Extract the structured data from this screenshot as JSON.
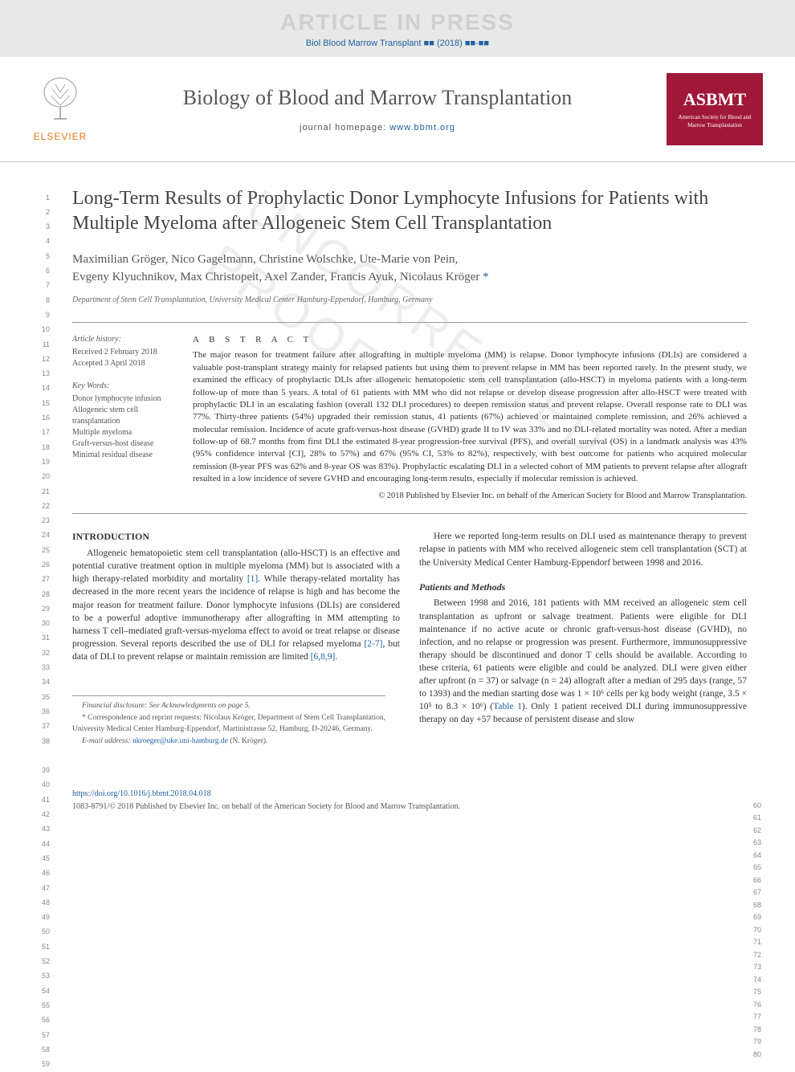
{
  "watermark": {
    "title": "ARTICLE IN PRESS",
    "citation": "Biol Blood Marrow Transplant ■■ (2018) ■■-■■",
    "proof": "UNCORRECTED PROOF"
  },
  "header": {
    "elsevier": "ELSEVIER",
    "journal_title": "Biology of Blood and Marrow Transplantation",
    "homepage_label": "journal homepage: ",
    "homepage_url": "www.bbmt.org",
    "asbmt": "ASBMT",
    "asbmt_sub": "American Society for Blood and Marrow Transplantation"
  },
  "article": {
    "title": "Long-Term Results of Prophylactic Donor Lymphocyte Infusions for Patients with Multiple Myeloma after Allogeneic Stem Cell Transplantation",
    "authors_line1": "Maximilian Gröger, Nico Gagelmann, Christine Wolschke, Ute-Marie von Pein,",
    "authors_line2": "Evgeny Klyuchnikov, Max Christopeit, Axel Zander, Francis Ayuk, Nicolaus Kröger ",
    "corresp_mark": "*",
    "affiliation": "Department of Stem Cell Transplantation, University Medical Center Hamburg-Eppendorf, Hamburg, Germany"
  },
  "history": {
    "label": "Article history:",
    "received": "Received 2 February 2018",
    "accepted": "Accepted 3 April 2018"
  },
  "keywords": {
    "label": "Key Words:",
    "items": [
      "Donor lymphocyte infusion",
      "Allogeneic stem cell transplantation",
      "Multiple myeloma",
      "Graft-versus-host disease",
      "Minimal residual disease"
    ]
  },
  "abstract": {
    "label": "A B S T R A C T",
    "text": "The major reason for treatment failure after allografting in multiple myeloma (MM) is relapse. Donor lymphocyte infusions (DLIs) are considered a valuable post-transplant strategy mainly for relapsed patients but using them to prevent relapse in MM has been reported rarely. In the present study, we examined the efficacy of prophylactic DLIs after allogeneic hematopoietic stem cell transplantation (allo-HSCT) in myeloma patients with a long-term follow-up of more than 5 years. A total of 61 patients with MM who did not relapse or develop disease progression after allo-HSCT were treated with prophylactic DLI in an escalating fashion (overall 132 DLI procedures) to deepen remission status and prevent relapse. Overall response rate to DLI was 77%. Thirty-three patients (54%) upgraded their remission status, 41 patients (67%) achieved or maintained complete remission, and 26% achieved a molecular remission. Incidence of acute graft-versus-host disease (GVHD) grade II to IV was 33% and no DLI-related mortality was noted. After a median follow-up of 68.7 months from first DLI the estimated 8-year progression-free survival (PFS), and overall survival (OS) in a landmark analysis was 43% (95% confidence interval [CI], 28% to 57%) and 67% (95% CI, 53% to 82%), respectively, with best outcome for patients who acquired molecular remission (8-year PFS was 62% and 8-year OS was 83%). Prophylactic escalating DLI in a selected cohort of MM patients to prevent relapse after allograft resulted in a low incidence of severe GVHD and encouraging long-term results, especially if molecular remission is achieved.",
    "copyright": "© 2018 Published by Elsevier Inc. on behalf of the American Society for Blood and Marrow Transplantation."
  },
  "body": {
    "intro_head": "INTRODUCTION",
    "intro_text": "Allogeneic hematopoietic stem cell transplantation (allo-HSCT) is an effective and potential curative treatment option in multiple myeloma (MM) but is associated with a high therapy-related morbidity and mortality [1]. While therapy-related mortality has decreased in the more recent years the incidence of relapse is high and has become the major reason for treatment failure. Donor lymphocyte infusions (DLIs) are considered to be a powerful adoptive immunotherapy after allografting in MM attempting to harness T cell–mediated graft-versus-myeloma effect to avoid or treat relapse or disease progression. Several reports described the use of DLI for relapsed myeloma [2-7], but data of DLI to prevent relapse or maintain remission are limited [6,8,9].",
    "right1": "Here we reported long-term results on DLI used as maintenance therapy to prevent relapse in patients with MM who received allogeneic stem cell transplantation (SCT) at the University Medical Center Hamburg-Eppendorf between 1998 and 2016.",
    "methods_head": "Patients and Methods",
    "methods_text": "Between 1998 and 2016, 181 patients with MM received an allogeneic stem cell transplantation as upfront or salvage treatment. Patients were eligible for DLI maintenance if no active acute or chronic graft-versus-host disease (GVHD), no infection, and no relapse or progression was present. Furthermore, immunosuppressive therapy should be discontinued and donor T cells should be available. According to these criteria, 61 patients were eligible and could be analyzed. DLI were given either after upfront (n = 37) or salvage (n = 24) allograft after a median of 295 days (range, 57 to 1393) and the median starting dose was 1 × 10⁶ cells per kg body weight (range, 3.5 × 10⁵ to 8.3 × 10⁶) (Table 1). Only 1 patient received DLI during immunosuppressive therapy on day +57 because of persistent disease and slow"
  },
  "footnotes": {
    "fin": "Financial disclosure: See Acknowledgments on page 5.",
    "corresp": "* Correspondence and reprint requests: Nicolaus Kröger, Department of Stem Cell Transplantation, University Medical Center Hamburg-Eppendorf, Martinistrasse 52, Hamburg, D-20246, Germany.",
    "email_label": "E-mail address: ",
    "email": "nkroeger@uke.uni-hamburg.de",
    "email_suffix": " (N. Kröger)."
  },
  "footer": {
    "doi": "https://doi.org/10.1016/j.bbmt.2018.04.018",
    "issn_copy": "1083-8791/© 2018 Published by Elsevier Inc. on behalf of the American Society for Blood and Marrow Transplantation."
  },
  "line_numbers_left": [
    "1",
    "2",
    "3",
    "4",
    "5",
    "6",
    "7",
    "8",
    "9",
    "10",
    "11",
    "12",
    "13",
    "14",
    "15",
    "16",
    "17",
    "18",
    "19",
    "20",
    "21",
    "22",
    "23",
    "24",
    "25",
    "26",
    "27",
    "28",
    "29",
    "30",
    "31",
    "32",
    "33",
    "34",
    "35",
    "36",
    "37",
    "38",
    "",
    "39",
    "40",
    "41",
    "42",
    "43",
    "44",
    "45",
    "46",
    "47",
    "48",
    "49",
    "50",
    "51",
    "52",
    "53",
    "54",
    "55",
    "56",
    "57",
    "58",
    "59"
  ],
  "line_numbers_right": [
    "60",
    "61",
    "62",
    "63",
    "64",
    "65",
    "66",
    "67",
    "68",
    "69",
    "70",
    "71",
    "72",
    "73",
    "74",
    "75",
    "76",
    "77",
    "78",
    "79",
    "80"
  ],
  "colors": {
    "link": "#2060a0",
    "elsevier_orange": "#e67817",
    "asbmt_red": "#a01838",
    "text": "#333333",
    "gray_bg": "#e8e8e8"
  }
}
